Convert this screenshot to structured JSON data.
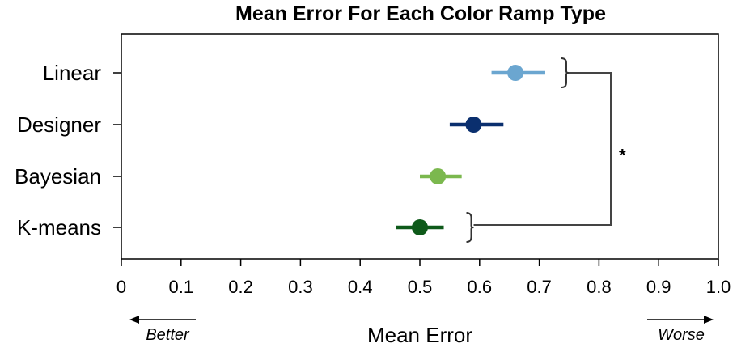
{
  "chart_data": {
    "type": "scatter",
    "title": "Mean Error For Each Color Ramp Type",
    "xlabel": "Mean Error",
    "ylabel": "",
    "xlim": [
      0,
      1.0
    ],
    "xticks": [
      "0",
      "0.1",
      "0.2",
      "0.3",
      "0.4",
      "0.5",
      "0.6",
      "0.7",
      "0.8",
      "0.9",
      "1.0"
    ],
    "grid": false,
    "series": [
      {
        "category": "Linear",
        "mean": 0.66,
        "ci": [
          0.62,
          0.71
        ],
        "color": "#6ba6d0"
      },
      {
        "category": "Designer",
        "mean": 0.59,
        "ci": [
          0.55,
          0.64
        ],
        "color": "#0a2f6e"
      },
      {
        "category": "Bayesian",
        "mean": 0.53,
        "ci": [
          0.5,
          0.57
        ],
        "color": "#7bb84e"
      },
      {
        "category": "K-means",
        "mean": 0.5,
        "ci": [
          0.46,
          0.54
        ],
        "color": "#0e5a1a"
      }
    ],
    "annotations": {
      "better": "Better",
      "worse": "Worse",
      "significance": "*",
      "significance_between": [
        "Linear",
        "K-means"
      ]
    }
  }
}
